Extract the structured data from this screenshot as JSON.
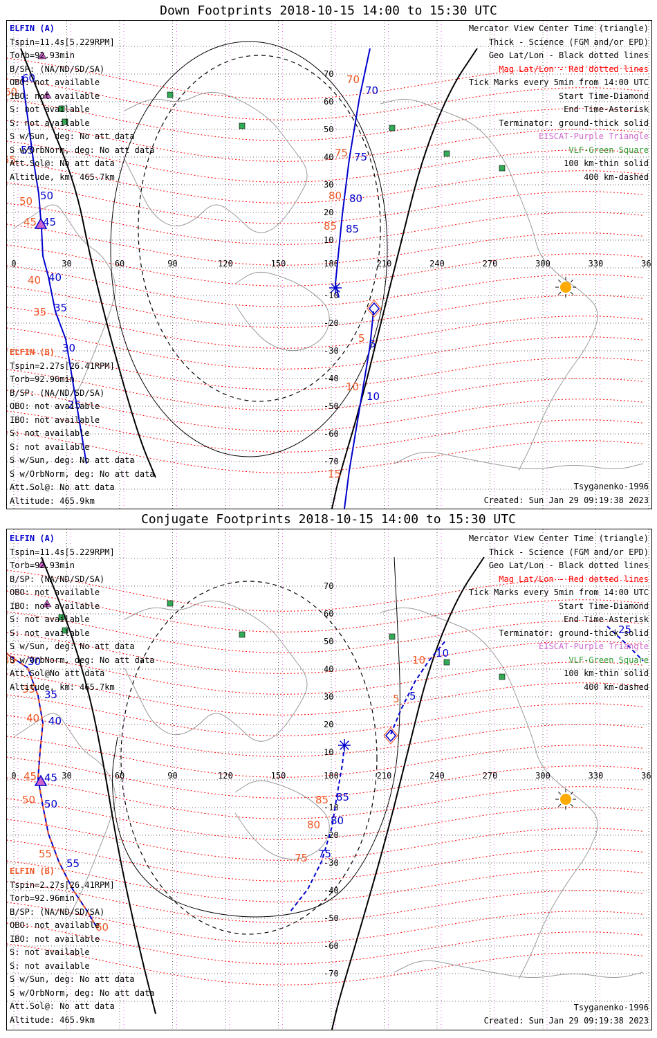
{
  "panels": [
    {
      "title": "Down Footprints 2018-10-15 14:00 to 15:30 UTC",
      "sat_a_info": {
        "label": "ELFIN (A)",
        "lines": [
          "Tspin=11.4s[5.229RPM]",
          "Torb=92.93min",
          "B/SP: (NA/ND/SD/SA)",
          "OBO: not available",
          "IBO: not available",
          "S: not available",
          "S: not available",
          "S w/Sun, deg: No att data",
          "S w/OrbNorm, deg: No att data",
          "Att.Sol@: No att data",
          "Altitude, km: 465.7km"
        ]
      },
      "sat_b_info": {
        "label": "ELFIN (B)",
        "lines": [
          "Tspin=2.27s[26.41RPM]",
          "Torb=92.96min",
          "B/SP: (NA/ND/SD/SA)",
          "OBO: not available",
          "IBO: not available",
          "S: not available",
          "S: not available",
          "S w/Sun, deg: No att data",
          "S w/OrbNorm, deg: No att data",
          "Att.Sol@: No att data",
          "Altitude: 465.9km"
        ]
      },
      "legend": [
        "Mercator View Center Time (triangle)",
        "Thick - Science (FGM and/or EPD)",
        "Geo Lat/Lon - Black dotted lines",
        "Mag Lat/Lon - Red dotted lines",
        "Tick Marks every 5min from 14:00 UTC",
        "Start Time-Diamond",
        "End Time-Asterisk",
        "Terminator: ground-thick solid",
        "EISCAT-Purple Triangle",
        "VLF-Green Square",
        "100 km-thin solid",
        "400 km-dashed"
      ],
      "model": "Tsyganenko-1996",
      "created": "Created: Sun Jan 29 09:19:38 2023",
      "track_a_ticks": [
        "60",
        "55",
        "50",
        "45",
        "40",
        "35",
        "30",
        "25"
      ],
      "track_a_mag_ticks": [
        "60",
        "55",
        "50",
        "45",
        "40",
        "35"
      ],
      "track_b_ticks": [
        "70",
        "75",
        "80",
        "85",
        "5",
        "10"
      ],
      "track_b_mag_ticks": [
        "70",
        "75",
        "80",
        "85",
        "5",
        "10",
        "15"
      ]
    },
    {
      "title": "Conjugate Footprints 2018-10-15 14:00 to 15:30 UTC",
      "sat_a_info": {
        "label": "ELFIN (A)",
        "lines": [
          "Tspin=11.4s[5.229RPM]",
          "Torb=92.93min",
          "B/SP: (NA/ND/SD/SA)",
          "OBO: not available",
          "IBO: not available",
          "S: not available",
          "S: not available",
          "S w/Sun, deg: No att data",
          "S w/OrbNorm, deg: No att data",
          "Att.Sol@No att data",
          "Altitude, km: 465.7km"
        ]
      },
      "sat_b_info": {
        "label": "ELFIN (B)",
        "lines": [
          "Tspin=2.27s[26.41RPM]",
          "Torb=92.96min",
          "B/SP: (NA/ND/SD/SA)",
          "OBO: not available",
          "IBO: not available",
          "S: not available",
          "S: not available",
          "S w/Sun, deg: No att data",
          "S w/OrbNorm, deg: No att data",
          "Att.Sol@: No att data",
          "Altitude: 465.9km"
        ]
      },
      "legend": [
        "Mercator View Center Time (triangle)",
        "Thick - Science (FGM and/or EPD)",
        "Geo Lat/Lon - Black dotted lines",
        "Mag Lat/Lon - Red dotted lines",
        "Tick Marks every 5min from 14:00 UTC",
        "Start Time-Diamond",
        "End Time-Asterisk",
        "Terminator: ground-thick solid",
        "EISCAT-Purple Triangle",
        "VLF-Green Square",
        "100 km-thin solid",
        "400 km-dashed"
      ],
      "model": "Tsyganenko-1996",
      "created": "Created: Sun Jan 29 09:19:38 2023",
      "track_a_ticks": [
        "30",
        "35",
        "40",
        "45",
        "50",
        "55"
      ],
      "track_a_mag_ticks": [
        "30",
        "35",
        "40",
        "45",
        "50",
        "55",
        "60"
      ],
      "track_b_ticks": [
        "85",
        "80",
        "75",
        "5",
        "10"
      ],
      "track_b_mag_ticks": [
        "85",
        "80",
        "75",
        "5",
        "10"
      ],
      "track_c_ticks": [
        "25"
      ]
    }
  ],
  "axes": {
    "lon_ticks": [
      "0",
      "30",
      "60",
      "90",
      "120",
      "150",
      "180",
      "210",
      "240",
      "270",
      "300",
      "330",
      "360"
    ],
    "lat_ticks_north": [
      "70",
      "60",
      "50",
      "40",
      "30",
      "20",
      "10"
    ],
    "lat_ticks_south": [
      "-10",
      "-20",
      "-30",
      "-40",
      "-50",
      "-60",
      "-70"
    ]
  },
  "colors": {
    "track_a": "#0000cc",
    "mag_label": "#ee5522",
    "mag_grid": "#ff0000",
    "geo_grid": "#000000",
    "geo_lon_pink": "#ee66ee",
    "coast": "#999999",
    "legend_red": "#ff0000",
    "legend_purple": "#cc66cc",
    "legend_green": "#339933",
    "vlf_square": "#33aa55",
    "eiscat_triangle": "#cc66cc",
    "sun": "#ffaa00"
  },
  "icons": {
    "start": "diamond-icon",
    "end": "asterisk-icon",
    "center": "triangle-icon",
    "sun": "sun-icon",
    "vlf": "green-square-icon"
  }
}
